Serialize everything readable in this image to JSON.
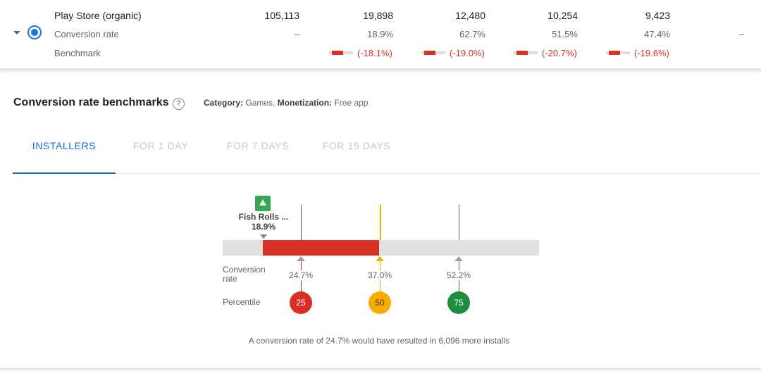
{
  "table": {
    "rows": [
      {
        "label": "Play Store (organic)",
        "values": [
          "105,113",
          "19,898",
          "12,480",
          "10,254",
          "9,423"
        ]
      },
      {
        "label": "Conversion rate",
        "values": [
          "–",
          "18.9%",
          "62.7%",
          "51.5%",
          "47.4%"
        ],
        "trailing": "–"
      },
      {
        "label": "Benchmark",
        "values": [
          "(-18.1%)",
          "(-19.0%)",
          "(-20.7%)",
          "(-19.6%)"
        ]
      }
    ]
  },
  "benchmarks": {
    "title": "Conversion rate benchmarks",
    "help_icon": "?",
    "category_label": "Category:",
    "category_value": "Games,",
    "monetization_label": "Monetization:",
    "monetization_value": "Free app",
    "tabs": [
      "INSTALLERS",
      "FOR 1 DAY",
      "FOR 7 DAYS",
      "FOR 15 DAYS"
    ],
    "active_tab": 0,
    "app": {
      "name": "Fish Rolls ...",
      "rate": "18.9%"
    },
    "conversion_rate_label": "Conversion rate",
    "percentile_label": "Percentile",
    "markers": [
      {
        "rate": "24.7%",
        "percentile": "25"
      },
      {
        "rate": "37.0%",
        "percentile": "50"
      },
      {
        "rate": "52.2%",
        "percentile": "75"
      }
    ],
    "footnote": "A conversion rate of 24.7% would have resulted in 6,096 more installs"
  },
  "colors": {
    "accent": "#1967d2",
    "negative": "#d93025",
    "median": "#f9ab00",
    "positive": "#1e8e3e"
  }
}
